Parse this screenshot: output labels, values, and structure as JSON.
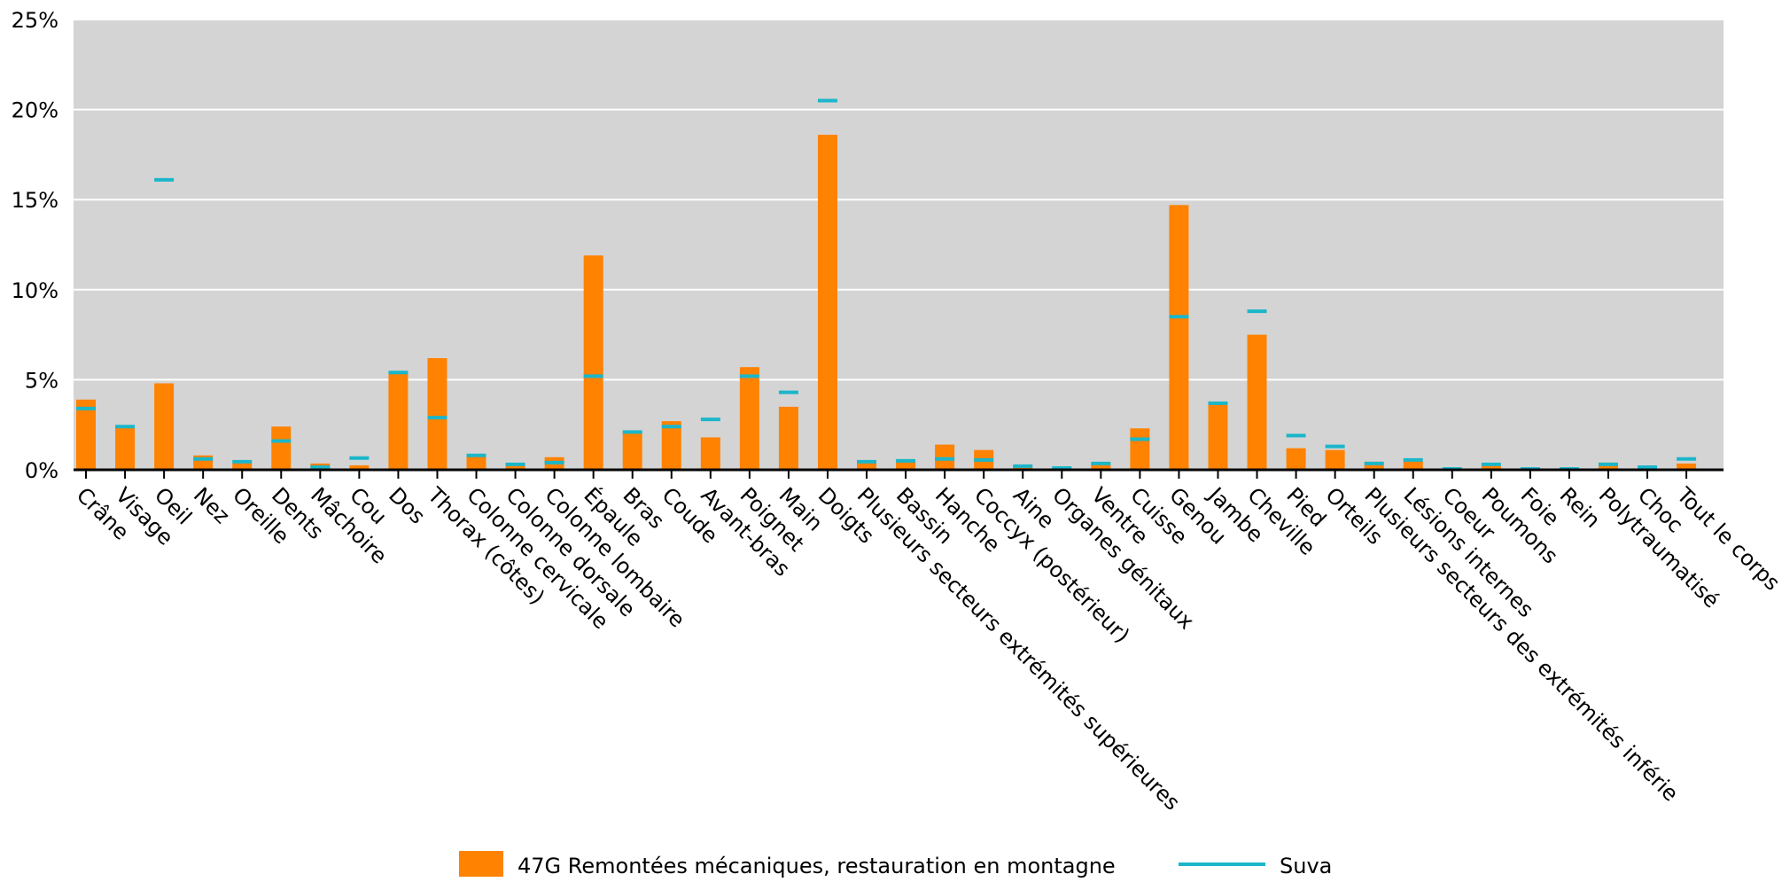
{
  "chart_data": {
    "type": "bar",
    "title": "",
    "xlabel": "",
    "ylabel": "",
    "ylim": [
      0,
      25
    ],
    "y_ticks": [
      "0%",
      "5%",
      "10%",
      "15%",
      "20%",
      "25%"
    ],
    "y_tick_values": [
      0,
      5,
      10,
      15,
      20,
      25
    ],
    "grid": true,
    "legend_position": "bottom",
    "categories": [
      "Crâne",
      "Visage",
      "Oeil",
      "Nez",
      "Oreille",
      "Dents",
      "Mâchoire",
      "Cou",
      "Dos",
      "Thorax (côtes)",
      "Colonne cervicale",
      "Colonne dorsale",
      "Colonne lombaire",
      "Épaule",
      "Bras",
      "Coude",
      "Avant-bras",
      "Poignet",
      "Main",
      "Doigts",
      "Plusieurs secteurs extrémités supérieures",
      "Bassin",
      "Hanche",
      "Coccyx (postérieur)",
      "Aine",
      "Organes génitaux",
      "Ventre",
      "Cuisse",
      "Genou",
      "Jambe",
      "Cheville",
      "Pied",
      "Orteils",
      "Plusieurs secteurs des extrémités inférie",
      "Lésions internes",
      "Coeur",
      "Poumons",
      "Foie",
      "Rein",
      "Polytraumatisé",
      "Choc",
      "Tout le corps"
    ],
    "series": [
      {
        "name": "47G Remontées mécaniques, restauration en montagne",
        "kind": "bar",
        "color": "#ff8200",
        "values": [
          3.9,
          2.4,
          4.8,
          0.8,
          0.4,
          2.4,
          0.35,
          0.25,
          5.4,
          6.2,
          0.8,
          0.3,
          0.7,
          11.9,
          2.1,
          2.7,
          1.8,
          5.7,
          3.5,
          18.6,
          0.4,
          0.5,
          1.4,
          1.1,
          0.2,
          0.05,
          0.35,
          2.3,
          14.7,
          3.7,
          7.5,
          1.2,
          1.1,
          0.45,
          0.5,
          0.05,
          0.25,
          0.05,
          0.05,
          0.4,
          0.15,
          0.35
        ]
      },
      {
        "name": "Suva",
        "kind": "marker",
        "color": "#1bb6c9",
        "values": [
          3.4,
          2.4,
          16.1,
          0.6,
          0.45,
          1.6,
          0.15,
          0.65,
          5.4,
          2.9,
          0.8,
          0.3,
          0.4,
          5.2,
          2.1,
          2.4,
          2.8,
          5.2,
          4.3,
          20.5,
          0.45,
          0.5,
          0.6,
          0.55,
          0.2,
          0.1,
          0.35,
          1.7,
          8.5,
          3.7,
          8.8,
          1.9,
          1.3,
          0.35,
          0.55,
          0.05,
          0.3,
          0.05,
          0.05,
          0.3,
          0.15,
          0.6
        ]
      }
    ]
  }
}
